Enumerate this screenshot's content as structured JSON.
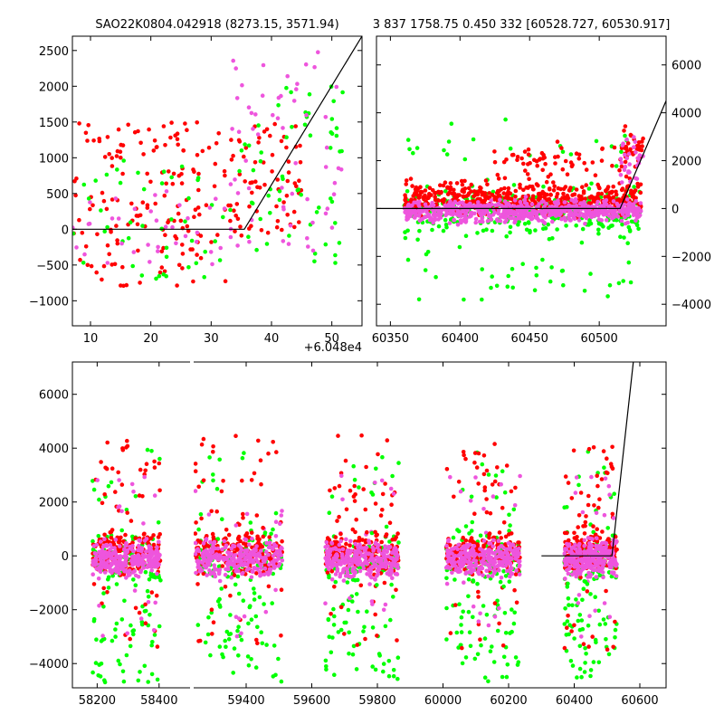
{
  "figure": {
    "title_left": "SAO22K0804.042918 (8273.15, 3571.94)",
    "title_right": "3 837 1758.75 0.450 332 [60528.727, 60530.917]",
    "offset_label": "+6.048e4"
  },
  "colors": {
    "red": "#ff0000",
    "green": "#00ff00",
    "magenta": "#ee55dd",
    "model_line": "#000000"
  },
  "chart_data": [
    {
      "type": "scatter",
      "panel": "top-left",
      "xlabel": "",
      "ylabel": "",
      "x_offset": 60480,
      "xlim": [
        7,
        55
      ],
      "ylim": [
        -1350,
        2700
      ],
      "xticks": [
        10,
        20,
        30,
        40,
        50
      ],
      "yticks": [
        -1000,
        -500,
        0,
        500,
        1000,
        1500,
        2000,
        2500
      ],
      "model": {
        "x": [
          7,
          35.5,
          55
        ],
        "y": [
          0,
          0,
          2700
        ]
      },
      "series": [
        {
          "color": "red",
          "clusters": [
            {
              "x": [
                7,
                33
              ],
              "y": [
                -800,
                1500
              ],
              "n": 160
            },
            {
              "x": [
                33,
                45
              ],
              "y": [
                -100,
                1500
              ],
              "n": 70
            }
          ]
        },
        {
          "color": "green",
          "clusters": [
            {
              "x": [
                7,
                33
              ],
              "y": [
                -700,
                1000
              ],
              "n": 45
            },
            {
              "x": [
                33,
                52
              ],
              "y": [
                -500,
                2000
              ],
              "n": 60
            }
          ]
        },
        {
          "color": "magenta",
          "clusters": [
            {
              "x": [
                7,
                33
              ],
              "y": [
                -500,
                600
              ],
              "n": 35
            },
            {
              "x": [
                33,
                52
              ],
              "y": [
                -300,
                2600
              ],
              "n": 60
            }
          ]
        }
      ]
    },
    {
      "type": "scatter",
      "panel": "top-right",
      "xlabel": "",
      "ylabel": "",
      "xlim": [
        60340,
        60548
      ],
      "ylim": [
        -4900,
        7200
      ],
      "xticks": [
        60350,
        60400,
        60450,
        60500
      ],
      "yticks": [
        -4000,
        -2000,
        0,
        2000,
        4000,
        6000
      ],
      "y_axis_side": "right",
      "model": {
        "x": [
          60340,
          60515,
          60548
        ],
        "y": [
          0,
          0,
          4500
        ]
      },
      "series": [
        {
          "color": "green",
          "clusters": [
            {
              "x": [
                60360,
                60530
              ],
              "y": [
                -1500,
                1200
              ],
              "n": 320
            },
            {
              "x": [
                60360,
                60530
              ],
              "y": [
                -4500,
                -1500
              ],
              "n": 35
            },
            {
              "x": [
                60360,
                60530
              ],
              "y": [
                1200,
                3800
              ],
              "n": 25
            }
          ]
        },
        {
          "color": "red",
          "clusters": [
            {
              "x": [
                60360,
                60530
              ],
              "y": [
                -500,
                1300
              ],
              "n": 520
            },
            {
              "x": [
                60420,
                60530
              ],
              "y": [
                1000,
                3000
              ],
              "n": 60
            },
            {
              "x": [
                60515,
                60532
              ],
              "y": [
                500,
                3800
              ],
              "n": 40
            }
          ]
        },
        {
          "color": "magenta",
          "clusters": [
            {
              "x": [
                60360,
                60530
              ],
              "y": [
                -700,
                500
              ],
              "n": 620
            },
            {
              "x": [
                60515,
                60532
              ],
              "y": [
                500,
                3500
              ],
              "n": 30
            }
          ]
        }
      ]
    },
    {
      "type": "scatter",
      "panel": "bottom",
      "xlabel": "",
      "ylabel": "",
      "x_segments": [
        [
          58120,
          58500
        ],
        [
          59240,
          60680
        ]
      ],
      "ylim": [
        -4900,
        7200
      ],
      "xticks": [
        58200,
        58400,
        59400,
        59600,
        59800,
        60000,
        60200,
        60400,
        60600
      ],
      "yticks": [
        -4000,
        -2000,
        0,
        2000,
        4000,
        6000
      ],
      "model": {
        "x": [
          60300,
          60515,
          60580
        ],
        "y": [
          0,
          0,
          7200
        ]
      },
      "groups": [
        {
          "x": [
            58185,
            58405
          ]
        },
        {
          "x": [
            59245,
            59510
          ]
        },
        {
          "x": [
            59640,
            59865
          ]
        },
        {
          "x": [
            60010,
            60235
          ]
        },
        {
          "x": [
            60370,
            60530
          ]
        }
      ],
      "series": [
        {
          "color": "green",
          "core_y": [
            -1500,
            1200
          ],
          "core_n": 90,
          "low_y": [
            -4700,
            -1500
          ],
          "low_n": 50,
          "high_y": [
            1200,
            4000
          ],
          "high_n": 12
        },
        {
          "color": "red",
          "core_y": [
            -800,
            1100
          ],
          "core_n": 170,
          "low_y": [
            -3500,
            -800
          ],
          "low_n": 14,
          "high_y": [
            1100,
            4500
          ],
          "high_n": 30
        },
        {
          "color": "magenta",
          "core_y": [
            -900,
            700
          ],
          "core_n": 260,
          "low_y": [
            -3000,
            -900
          ],
          "low_n": 8,
          "high_y": [
            700,
            3000
          ],
          "high_n": 10
        }
      ]
    }
  ]
}
